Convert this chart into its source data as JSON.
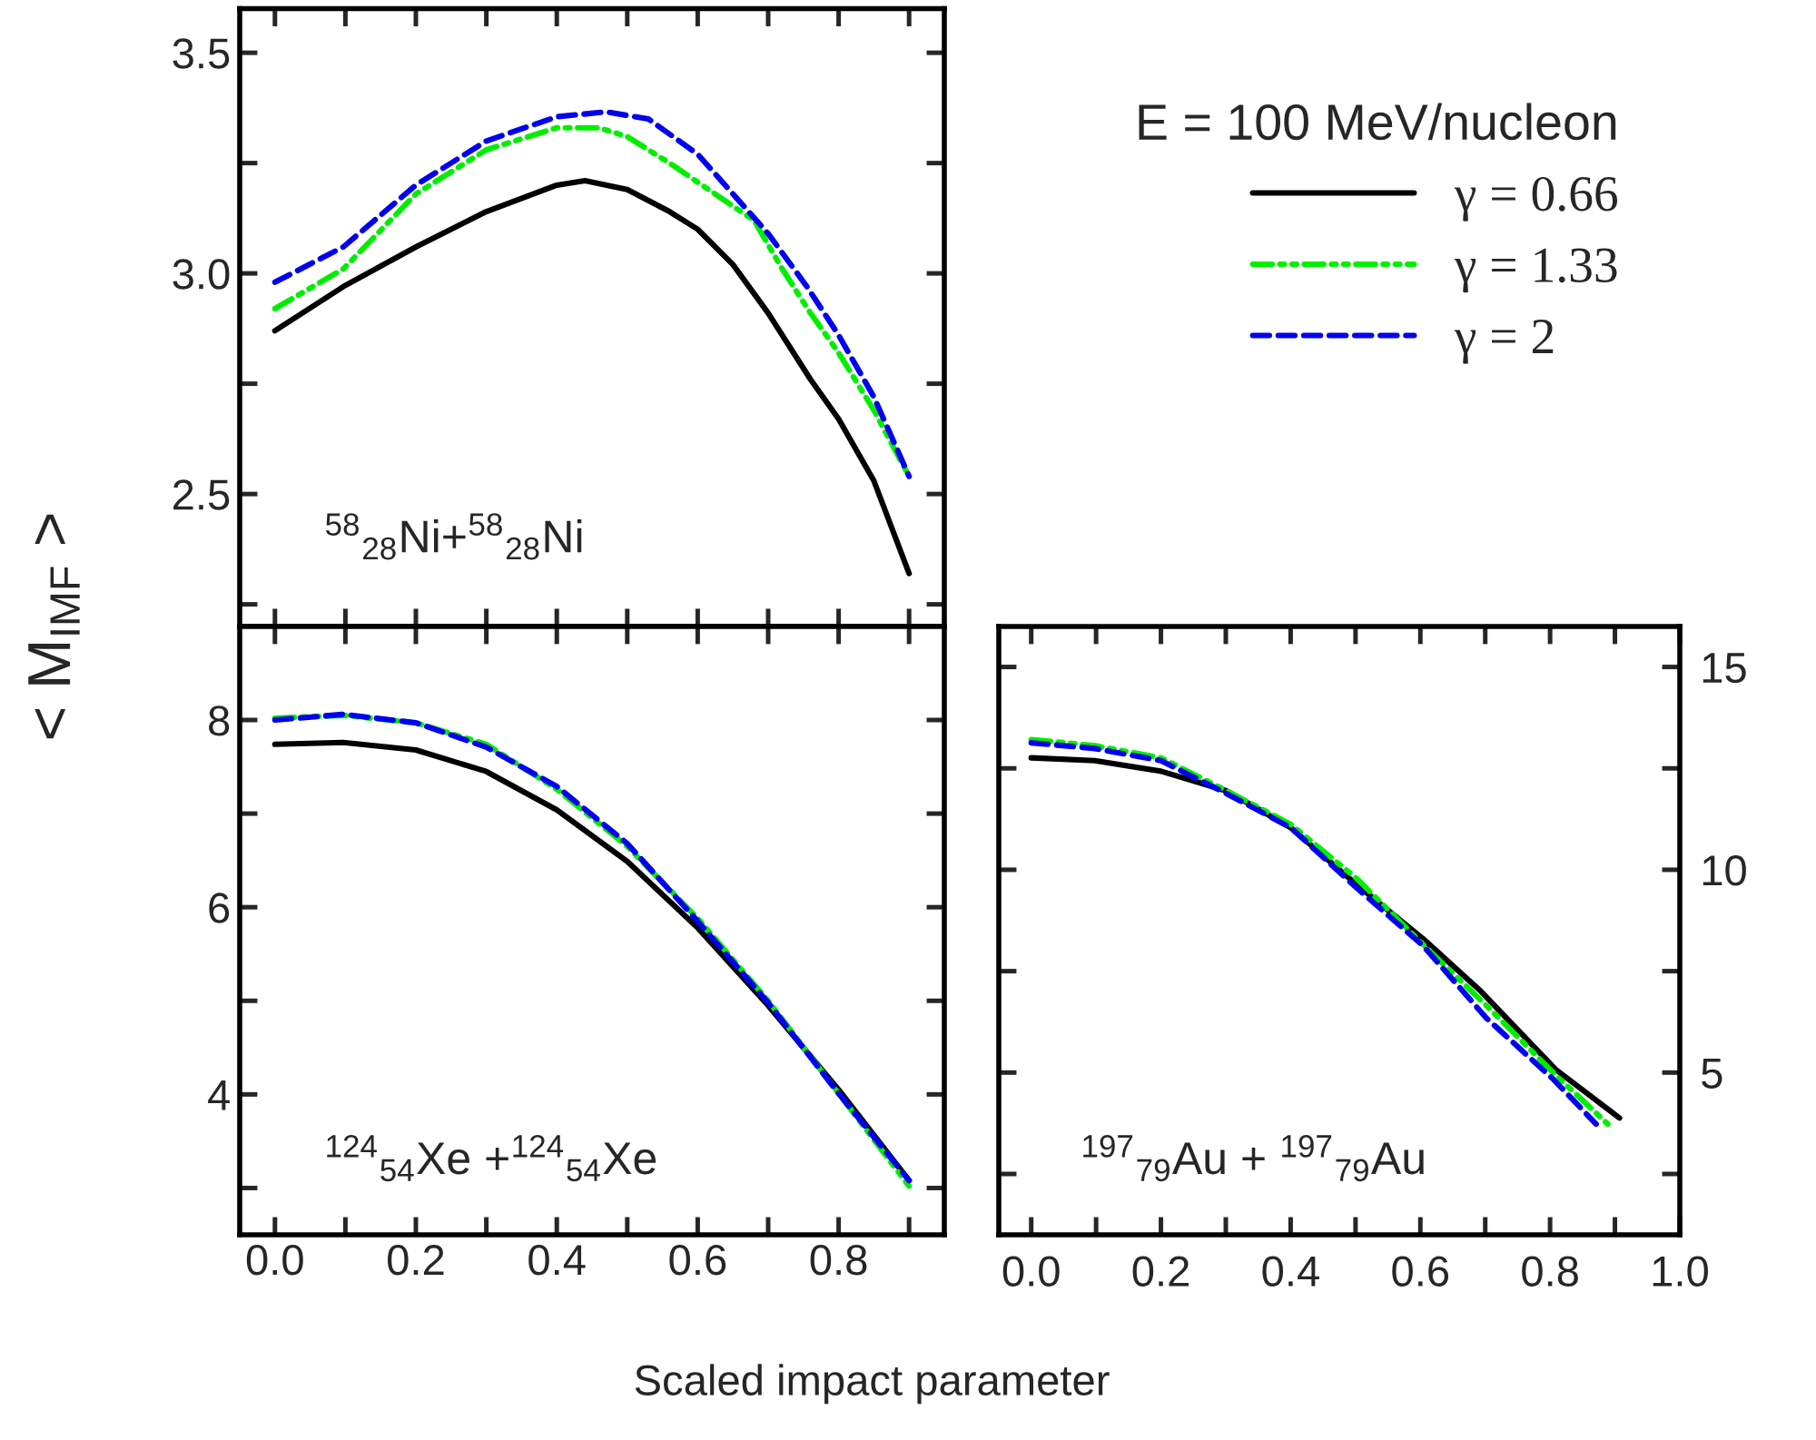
{
  "chart_data": [
    {
      "type": "line",
      "ylabel": "< M$_{IMF}$ >",
      "legend_title": "E = 100 MeV/nucleon",
      "legend": "right",
      "tick_labels": "y",
      "annotations": [
        "$^{58}$$_{28}$Ni+$^{58}$$_{28}$Ni"
      ],
      "xlim": [
        -0.05,
        0.95
      ],
      "ylim": [
        2.2,
        3.6
      ],
      "xticks": [
        {
          "value": 0,
          "label": null
        },
        {
          "value": 0.1,
          "label": null
        },
        {
          "value": 0.2,
          "label": null
        },
        {
          "value": 0.3,
          "label": null
        },
        {
          "value": 0.4,
          "label": null
        },
        {
          "value": 0.5,
          "label": null
        },
        {
          "value": 0.6,
          "label": null
        },
        {
          "value": 0.7,
          "label": null
        },
        {
          "value": 0.8,
          "label": null
        },
        {
          "value": 0.9,
          "label": null
        }
      ],
      "yticks": [
        {
          "value": 2.25,
          "label": null
        },
        2.5,
        {
          "value": 2.75,
          "label": null
        },
        {
          "value": 3,
          "label": "3.0"
        },
        {
          "value": 3.25,
          "label": null
        },
        3.5
      ],
      "series": [
        {
          "name": "γ = 0.66",
          "color": "#000000",
          "line_style": "solid",
          "x": [
            0,
            0.097,
            0.2,
            0.3,
            0.4,
            0.44,
            0.5,
            0.56,
            0.6,
            0.65,
            0.7,
            0.76,
            0.8,
            0.85,
            0.9
          ],
          "values": [
            2.87,
            2.97,
            3.06,
            3.14,
            3.2,
            3.21,
            3.19,
            3.14,
            3.1,
            3.02,
            2.91,
            2.76,
            2.67,
            2.53,
            2.32
          ]
        },
        {
          "name": "γ = 1.33",
          "color": "#00ee00",
          "line_style": "dashdotdot",
          "x": [
            0,
            0.097,
            0.2,
            0.3,
            0.4,
            0.46,
            0.5,
            0.56,
            0.68,
            0.72,
            0.76,
            0.8,
            0.85,
            0.9
          ],
          "values": [
            2.92,
            3.01,
            3.18,
            3.28,
            3.33,
            3.33,
            3.31,
            3.25,
            3.12,
            3.01,
            2.91,
            2.82,
            2.69,
            2.54
          ]
        },
        {
          "name": "γ = 2",
          "color": "#0000ee",
          "line_style": "dashed",
          "x": [
            0,
            0.097,
            0.2,
            0.3,
            0.4,
            0.47,
            0.53,
            0.6,
            0.65,
            0.7,
            0.755,
            0.8,
            0.85,
            0.9
          ],
          "values": [
            2.98,
            3.06,
            3.2,
            3.3,
            3.355,
            3.366,
            3.35,
            3.27,
            3.18,
            3.09,
            2.97,
            2.86,
            2.72,
            2.54
          ]
        }
      ]
    },
    {
      "type": "line",
      "xlabel": "Scaled impact parameter",
      "annotations": [
        "$^{124}$$_{54}$Xe +$^{124}$$_{54}$Xe"
      ],
      "xlim": [
        -0.05,
        0.95
      ],
      "ylim": [
        2.5,
        9
      ],
      "xticks": [
        {
          "value": 0,
          "label": "0.0"
        },
        {
          "value": 0.1,
          "label": null
        },
        0.2,
        {
          "value": 0.3,
          "label": null
        },
        0.4,
        {
          "value": 0.5,
          "label": null
        },
        0.6,
        {
          "value": 0.7,
          "label": null
        },
        0.8,
        {
          "value": 0.9,
          "label": null
        }
      ],
      "yticks": [
        {
          "value": 3,
          "label": null
        },
        4,
        {
          "value": 5,
          "label": null
        },
        6,
        {
          "value": 7,
          "label": null
        },
        8
      ],
      "series": [
        {
          "color": "#000000",
          "line_style": "solid",
          "x": [
            0,
            0.097,
            0.2,
            0.3,
            0.4,
            0.5,
            0.6,
            0.7,
            0.8,
            0.9
          ],
          "values": [
            7.74,
            7.76,
            7.68,
            7.45,
            7.04,
            6.49,
            5.78,
            4.95,
            4.05,
            3.08
          ]
        },
        {
          "color": "#00ee00",
          "line_style": "dashdotdot",
          "x": [
            0,
            0.097,
            0.2,
            0.3,
            0.4,
            0.5,
            0.6,
            0.7,
            0.8,
            0.9
          ],
          "values": [
            8.02,
            8.05,
            7.97,
            7.74,
            7.26,
            6.65,
            5.88,
            5.0,
            4.01,
            3.02
          ]
        },
        {
          "color": "#0000ee",
          "line_style": "dashed",
          "x": [
            0,
            0.097,
            0.2,
            0.3,
            0.4,
            0.5,
            0.6,
            0.7,
            0.8,
            0.9
          ],
          "values": [
            8.0,
            8.06,
            7.97,
            7.71,
            7.29,
            6.68,
            5.85,
            4.98,
            4.01,
            3.08
          ]
        }
      ]
    },
    {
      "type": "line",
      "annotations": [
        "$^{197}$$_{79}$Au + $^{197}$$_{79}$Au"
      ],
      "xlim": [
        -0.05,
        1.0
      ],
      "y2lim": [
        1,
        16
      ],
      "xticks": [
        {
          "value": 0,
          "label": "0.0"
        },
        {
          "value": 0.1,
          "label": null
        },
        0.2,
        {
          "value": 0.3,
          "label": null
        },
        0.4,
        {
          "value": 0.5,
          "label": null
        },
        0.6,
        {
          "value": 0.7,
          "label": null
        },
        0.8,
        {
          "value": 0.9,
          "label": null
        },
        {
          "value": 1,
          "label": "1.0"
        }
      ],
      "y2ticks": [
        {
          "value": 2.5,
          "label": null
        },
        5,
        {
          "value": 7.5,
          "label": null
        },
        10,
        {
          "value": 12.5,
          "label": null
        },
        15
      ],
      "series": [
        {
          "color": "#000000",
          "line_style": "solid",
          "axis": "y2",
          "x": [
            0,
            0.098,
            0.2,
            0.302,
            0.4,
            0.502,
            0.604,
            0.693,
            0.809,
            0.907
          ],
          "values": [
            12.76,
            12.69,
            12.43,
            11.94,
            11.04,
            9.63,
            8.3,
            7.01,
            5.07,
            3.88
          ]
        },
        {
          "color": "#00ee00",
          "line_style": "dashdotdot",
          "axis": "y2",
          "x": [
            0,
            0.098,
            0.2,
            0.302,
            0.4,
            0.502,
            0.604,
            0.707,
            0.809,
            0.889
          ],
          "values": [
            13.21,
            13.06,
            12.76,
            11.94,
            11.12,
            9.78,
            8.16,
            6.57,
            4.93,
            3.73
          ]
        },
        {
          "color": "#0000ee",
          "line_style": "dashed",
          "axis": "y2",
          "x": [
            0,
            0.098,
            0.2,
            0.302,
            0.4,
            0.502,
            0.604,
            0.702,
            0.804,
            0.871
          ],
          "values": [
            13.13,
            12.99,
            12.69,
            11.87,
            11.04,
            9.55,
            8.13,
            6.34,
            4.85,
            3.73
          ]
        }
      ]
    }
  ]
}
